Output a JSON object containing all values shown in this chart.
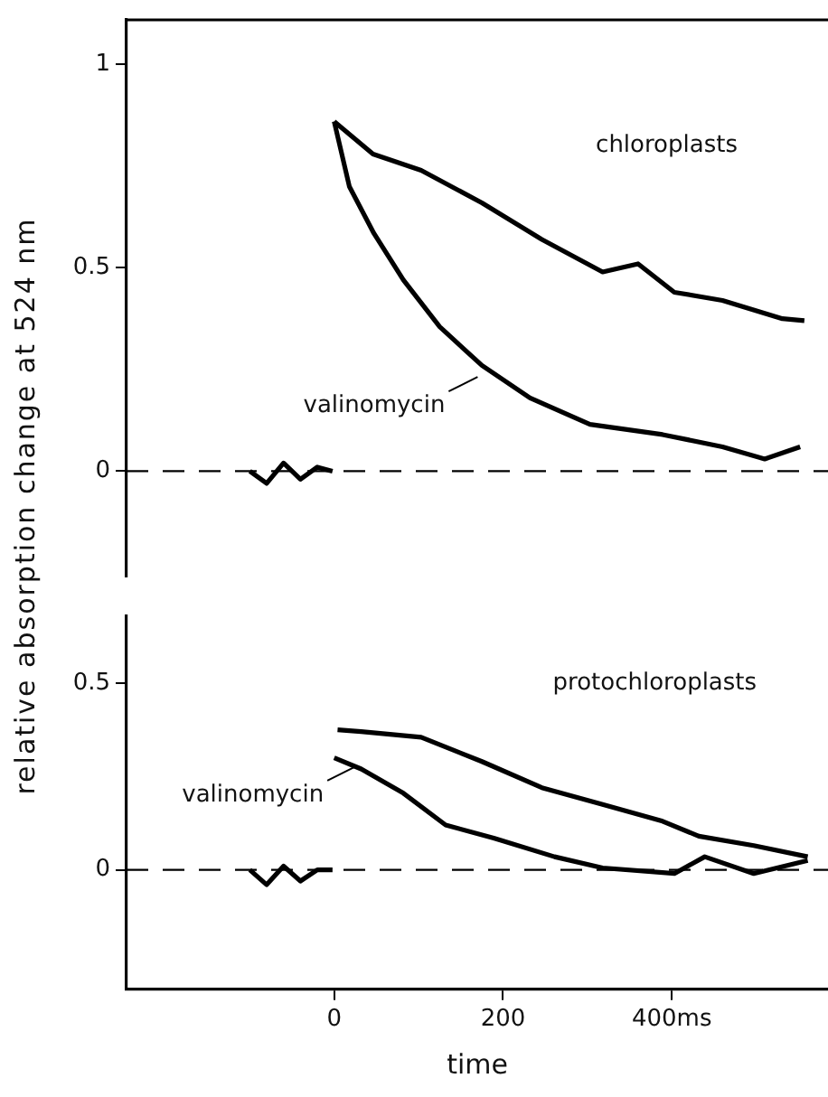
{
  "chart_data": [
    {
      "type": "line",
      "ylabel": "relative absorption change at 524 nm",
      "xlim": [
        -246,
        585
      ],
      "ylim": [
        -0.26,
        1.11
      ],
      "yticks": [
        {
          "value": 0,
          "label": "0"
        },
        {
          "value": 0.5,
          "label": "0.5"
        },
        {
          "value": 1,
          "label": "1"
        }
      ],
      "tick_labels": "y",
      "grid": false,
      "legend": false,
      "marker": "none",
      "line_style": "solid",
      "series": [
        {
          "color": "#000000",
          "x": [
            -100,
            -80,
            -60,
            -40,
            -20,
            -2
          ],
          "values": [
            0.0,
            -0.03,
            0.02,
            -0.02,
            0.01,
            0.0
          ]
        },
        {
          "color": "#000000",
          "x": [
            0,
            46,
            103,
            175,
            246,
            318,
            360,
            403,
            460,
            531,
            557
          ],
          "values": [
            0.86,
            0.78,
            0.74,
            0.66,
            0.57,
            0.49,
            0.51,
            0.44,
            0.42,
            0.375,
            0.37
          ]
        },
        {
          "color": "#000000",
          "x": [
            0,
            18,
            47,
            82,
            125,
            175,
            232,
            303,
            389,
            460,
            510,
            552
          ],
          "values": [
            0.86,
            0.7,
            0.585,
            0.47,
            0.355,
            0.26,
            0.18,
            0.115,
            0.09,
            0.06,
            0.03,
            0.06
          ]
        }
      ],
      "ref_lines": [
        {
          "axis": "y",
          "value": 0,
          "line_style": "dashed"
        }
      ],
      "annotations": [
        "chloroplasts",
        "valinomycin"
      ]
    },
    {
      "type": "line",
      "xlabel": "time",
      "xlim": [
        -246,
        585
      ],
      "ylim": [
        -0.32,
        0.68
      ],
      "xticks": [
        0,
        200,
        {
          "value": 400,
          "label": "400ms"
        }
      ],
      "yticks": [
        {
          "value": 0,
          "label": "0"
        },
        {
          "value": 0.5,
          "label": "0.5"
        }
      ],
      "grid": false,
      "legend": false,
      "marker": "none",
      "line_style": "solid",
      "series": [
        {
          "color": "#000000",
          "x": [
            -100,
            -80,
            -60,
            -40,
            -20,
            -2
          ],
          "values": [
            0.0,
            -0.04,
            0.01,
            -0.03,
            0.0,
            0.0
          ]
        },
        {
          "color": "#000000",
          "x": [
            4,
            32,
            103,
            175,
            246,
            318,
            389,
            432,
            497,
            561
          ],
          "values": [
            0.375,
            0.37,
            0.355,
            0.29,
            0.22,
            0.175,
            0.13,
            0.09,
            0.065,
            0.035
          ]
        },
        {
          "color": "#000000",
          "x": [
            0,
            32,
            82,
            132,
            189,
            261,
            318,
            403,
            439,
            497,
            561
          ],
          "values": [
            0.3,
            0.27,
            0.205,
            0.12,
            0.085,
            0.035,
            0.005,
            -0.01,
            0.035,
            -0.01,
            0.025
          ]
        }
      ],
      "ref_lines": [
        {
          "axis": "y",
          "value": 0,
          "line_style": "dashed"
        }
      ],
      "annotations": [
        "protochloroplasts",
        "valinomycin"
      ]
    }
  ]
}
